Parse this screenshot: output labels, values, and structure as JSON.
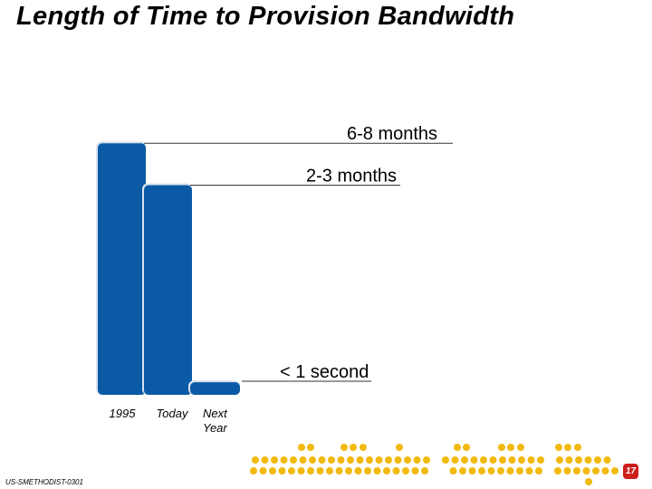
{
  "slide": {
    "title": "Length of Time to Provision Bandwidth",
    "footer_code": "US-SMETHODIST-0301",
    "page_number": "17"
  },
  "colors": {
    "bar": "#0b5aa5",
    "bar_edge": "#d7e2ee",
    "dot": "#f2b90f",
    "badge": "#cc1f1a"
  },
  "chart_data": {
    "type": "bar",
    "title": "Length of Time to Provision Bandwidth",
    "categories": [
      "1995",
      "Today",
      "Next Year"
    ],
    "values": [
      6,
      5,
      0.3
    ],
    "value_labels": [
      "6-8 months",
      "2-3 months",
      "< 1 second"
    ],
    "xlabel": "",
    "ylabel": "",
    "grid": false,
    "legend": "none",
    "axis_values_printed": false
  }
}
